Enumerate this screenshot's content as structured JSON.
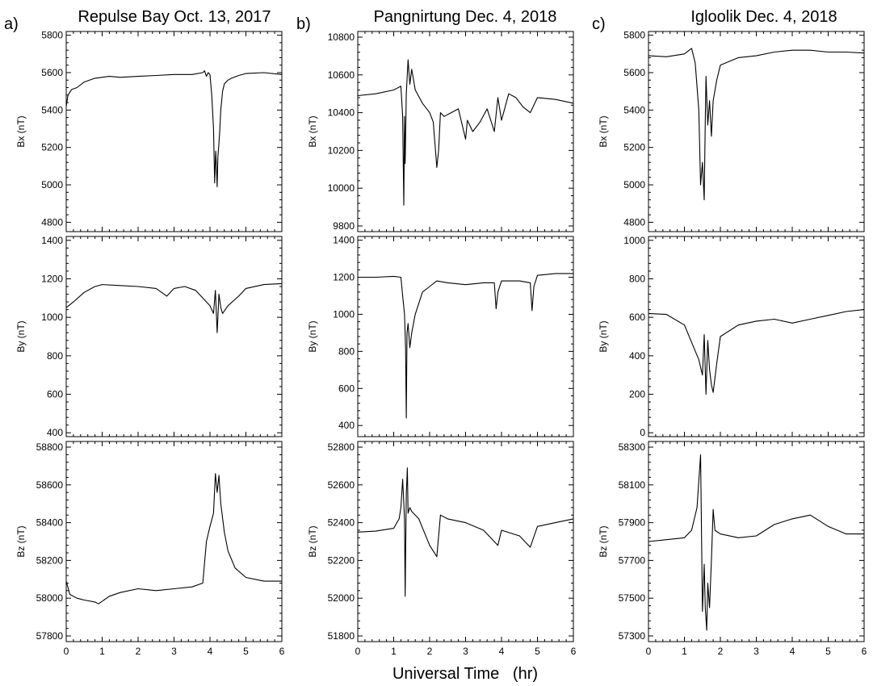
{
  "figure": {
    "xlabel": "Universal Time   (hr)",
    "columns": [
      {
        "letter": "a)",
        "title": "Repulse Bay   Oct. 13, 2017"
      },
      {
        "letter": "b)",
        "title": "Pangnirtung   Dec. 4, 2018"
      },
      {
        "letter": "c)",
        "title": "Igloolik   Dec. 4, 2018"
      }
    ]
  },
  "chart_data": [
    {
      "type": "line",
      "station": "Repulse Bay",
      "date": "Oct. 13, 2017",
      "ylabel": "Bx  (nT)",
      "xlim": [
        0,
        6
      ],
      "ylim": [
        4750,
        5820
      ],
      "xticks": [
        0,
        1,
        2,
        3,
        4,
        5,
        6
      ],
      "yticks": [
        4800,
        5000,
        5200,
        5400,
        5600,
        5800
      ],
      "series": [
        {
          "x": [
            0,
            0.05,
            0.15,
            0.3,
            0.5,
            0.8,
            1.0,
            1.2,
            1.5,
            2.0,
            2.5,
            3.0,
            3.5,
            3.8,
            3.85,
            3.9,
            3.95,
            4.0,
            4.05,
            4.1,
            4.13,
            4.16,
            4.18,
            4.2,
            4.22,
            4.24,
            4.27,
            4.3,
            4.35,
            4.4,
            4.5,
            4.6,
            4.8,
            5.0,
            5.5,
            6.0
          ],
          "y": [
            5420,
            5480,
            5510,
            5520,
            5550,
            5570,
            5575,
            5580,
            5575,
            5580,
            5585,
            5590,
            5590,
            5600,
            5610,
            5580,
            5600,
            5590,
            5480,
            5300,
            5010,
            5180,
            5100,
            4990,
            5150,
            5200,
            5280,
            5400,
            5500,
            5540,
            5560,
            5570,
            5585,
            5595,
            5600,
            5590
          ]
        }
      ]
    },
    {
      "type": "line",
      "station": "Repulse Bay",
      "date": "Oct. 13, 2017",
      "ylabel": "By  (nT)",
      "xlim": [
        0,
        6
      ],
      "ylim": [
        380,
        1420
      ],
      "xticks": [
        0,
        1,
        2,
        3,
        4,
        5,
        6
      ],
      "yticks": [
        400,
        600,
        800,
        1000,
        1200,
        1400
      ],
      "series": [
        {
          "x": [
            0,
            0.2,
            0.5,
            0.8,
            1.0,
            1.5,
            2.0,
            2.5,
            2.8,
            3.0,
            3.3,
            3.6,
            3.8,
            4.0,
            4.1,
            4.15,
            4.2,
            4.22,
            4.25,
            4.3,
            4.35,
            4.5,
            4.8,
            5.0,
            5.5,
            6.0
          ],
          "y": [
            1050,
            1080,
            1130,
            1160,
            1170,
            1165,
            1160,
            1150,
            1110,
            1150,
            1160,
            1140,
            1100,
            1060,
            1020,
            1140,
            920,
            1000,
            1120,
            1050,
            1020,
            1060,
            1110,
            1150,
            1170,
            1175
          ]
        }
      ]
    },
    {
      "type": "line",
      "station": "Repulse Bay",
      "date": "Oct. 13, 2017",
      "ylabel": "Bz  (nT)",
      "xlim": [
        0,
        6
      ],
      "ylim": [
        57770,
        58830
      ],
      "xticks": [
        0,
        1,
        2,
        3,
        4,
        5,
        6
      ],
      "yticks": [
        57800,
        58000,
        58200,
        58400,
        58600,
        58800
      ],
      "series": [
        {
          "x": [
            0,
            0.1,
            0.3,
            0.5,
            0.8,
            0.9,
            1.2,
            1.5,
            2.0,
            2.5,
            3.0,
            3.5,
            3.8,
            3.9,
            4.0,
            4.1,
            4.15,
            4.2,
            4.25,
            4.3,
            4.4,
            4.5,
            4.7,
            5.0,
            5.5,
            6.0
          ],
          "y": [
            58090,
            58020,
            58000,
            57990,
            57980,
            57970,
            58010,
            58030,
            58050,
            58040,
            58050,
            58060,
            58080,
            58300,
            58380,
            58450,
            58660,
            58560,
            58650,
            58500,
            58350,
            58250,
            58160,
            58110,
            58090,
            58090
          ]
        }
      ]
    },
    {
      "type": "line",
      "station": "Pangnirtung",
      "date": "Dec. 4, 2018",
      "ylabel": "Bx  (nT)",
      "xlim": [
        0,
        6
      ],
      "ylim": [
        9770,
        10830
      ],
      "xticks": [
        0,
        1,
        2,
        3,
        4,
        5,
        6
      ],
      "yticks": [
        9800,
        10000,
        10200,
        10400,
        10600,
        10800
      ],
      "series": [
        {
          "x": [
            0,
            0.5,
            1.0,
            1.2,
            1.25,
            1.28,
            1.3,
            1.32,
            1.35,
            1.4,
            1.45,
            1.5,
            1.6,
            1.8,
            2.0,
            2.1,
            2.2,
            2.25,
            2.3,
            2.4,
            2.6,
            2.8,
            3.0,
            3.05,
            3.2,
            3.4,
            3.6,
            3.8,
            3.9,
            4.0,
            4.2,
            4.4,
            4.6,
            4.8,
            5.0,
            5.5,
            6.0
          ],
          "y": [
            10490,
            10500,
            10520,
            10540,
            10380,
            9910,
            10380,
            10130,
            10500,
            10680,
            10550,
            10630,
            10520,
            10450,
            10400,
            10350,
            10110,
            10200,
            10400,
            10380,
            10400,
            10420,
            10260,
            10360,
            10300,
            10350,
            10420,
            10300,
            10480,
            10360,
            10500,
            10480,
            10430,
            10400,
            10480,
            10470,
            10450
          ]
        }
      ]
    },
    {
      "type": "line",
      "station": "Pangnirtung",
      "date": "Dec. 4, 2018",
      "ylabel": "By  (nT)",
      "xlim": [
        0,
        6
      ],
      "ylim": [
        340,
        1420
      ],
      "xticks": [
        0,
        1,
        2,
        3,
        4,
        5,
        6
      ],
      "yticks": [
        400,
        600,
        800,
        1000,
        1200,
        1400
      ],
      "series": [
        {
          "x": [
            0,
            0.5,
            1.0,
            1.2,
            1.25,
            1.3,
            1.33,
            1.35,
            1.37,
            1.4,
            1.45,
            1.5,
            1.6,
            1.8,
            2.0,
            2.2,
            2.5,
            3.0,
            3.5,
            3.8,
            3.85,
            3.9,
            4.0,
            4.5,
            4.8,
            4.85,
            4.9,
            5.0,
            5.5,
            6.0
          ],
          "y": [
            1200,
            1200,
            1205,
            1200,
            1100,
            1000,
            820,
            440,
            900,
            950,
            820,
            900,
            1000,
            1120,
            1150,
            1180,
            1170,
            1160,
            1170,
            1170,
            1030,
            1120,
            1180,
            1180,
            1170,
            1020,
            1150,
            1210,
            1220,
            1220
          ]
        }
      ]
    },
    {
      "type": "line",
      "station": "Pangnirtung",
      "date": "Dec. 4, 2018",
      "ylabel": "Bz  (nT)",
      "xlim": [
        0,
        6
      ],
      "ylim": [
        51770,
        52830
      ],
      "xticks": [
        0,
        1,
        2,
        3,
        4,
        5,
        6
      ],
      "yticks": [
        51800,
        52000,
        52200,
        52400,
        52600,
        52800
      ],
      "series": [
        {
          "x": [
            0,
            0.5,
            1.0,
            1.15,
            1.2,
            1.25,
            1.3,
            1.32,
            1.35,
            1.38,
            1.4,
            1.45,
            1.5,
            1.7,
            2.0,
            2.2,
            2.3,
            2.5,
            3.0,
            3.5,
            3.9,
            4.0,
            4.5,
            4.8,
            5.0,
            5.5,
            6.0
          ],
          "y": [
            52350,
            52355,
            52370,
            52420,
            52480,
            52630,
            52420,
            52010,
            52550,
            52690,
            52450,
            52480,
            52460,
            52420,
            52280,
            52220,
            52440,
            52420,
            52400,
            52360,
            52280,
            52360,
            52330,
            52270,
            52380,
            52400,
            52420
          ]
        }
      ]
    },
    {
      "type": "line",
      "station": "Igloolik",
      "date": "Dec. 4, 2018",
      "ylabel": "Bx  (nT)",
      "xlim": [
        0,
        6
      ],
      "ylim": [
        4750,
        5820
      ],
      "xticks": [
        0,
        1,
        2,
        3,
        4,
        5,
        6
      ],
      "yticks": [
        4800,
        5000,
        5200,
        5400,
        5600,
        5800
      ],
      "series": [
        {
          "x": [
            0,
            0.5,
            1.0,
            1.2,
            1.3,
            1.4,
            1.45,
            1.5,
            1.55,
            1.58,
            1.6,
            1.65,
            1.7,
            1.75,
            1.8,
            1.9,
            2.0,
            2.5,
            3.0,
            3.5,
            4.0,
            4.5,
            5.0,
            5.5,
            6.0
          ],
          "y": [
            5690,
            5685,
            5700,
            5730,
            5650,
            5400,
            5000,
            5120,
            4920,
            5340,
            5580,
            5320,
            5450,
            5260,
            5450,
            5560,
            5640,
            5680,
            5690,
            5710,
            5720,
            5720,
            5710,
            5710,
            5705
          ]
        }
      ]
    },
    {
      "type": "line",
      "station": "Igloolik",
      "date": "Dec. 4, 2018",
      "ylabel": "By  (nT)",
      "xlim": [
        0,
        6
      ],
      "ylim": [
        -20,
        1020
      ],
      "xticks": [
        0,
        1,
        2,
        3,
        4,
        5,
        6
      ],
      "yticks": [
        0,
        200,
        400,
        600,
        800,
        1000
      ],
      "series": [
        {
          "x": [
            0,
            0.5,
            1.0,
            1.2,
            1.4,
            1.5,
            1.55,
            1.6,
            1.65,
            1.7,
            1.75,
            1.8,
            1.9,
            2.0,
            2.5,
            3.0,
            3.5,
            4.0,
            4.5,
            5.0,
            5.5,
            6.0
          ],
          "y": [
            620,
            615,
            560,
            470,
            380,
            300,
            510,
            200,
            480,
            330,
            250,
            210,
            360,
            500,
            560,
            580,
            590,
            570,
            590,
            610,
            630,
            640
          ]
        }
      ]
    },
    {
      "type": "line",
      "station": "Igloolik",
      "date": "Dec. 4, 2018",
      "ylabel": "Bz  (nT)",
      "xlim": [
        0,
        6
      ],
      "ylim": [
        57270,
        58330
      ],
      "xticks": [
        0,
        1,
        2,
        3,
        4,
        5,
        6
      ],
      "yticks": [
        57300,
        57500,
        57700,
        57900,
        58100,
        58300
      ],
      "series": [
        {
          "x": [
            0,
            0.5,
            1.0,
            1.2,
            1.35,
            1.45,
            1.5,
            1.55,
            1.58,
            1.62,
            1.65,
            1.7,
            1.75,
            1.8,
            1.85,
            2.0,
            2.5,
            3.0,
            3.5,
            4.0,
            4.5,
            5.0,
            5.5,
            6.0
          ],
          "y": [
            57800,
            57810,
            57820,
            57860,
            57980,
            58260,
            57430,
            57680,
            57450,
            57330,
            57580,
            57450,
            57700,
            57970,
            57860,
            57840,
            57820,
            57830,
            57890,
            57920,
            57940,
            57880,
            57840,
            57840
          ]
        }
      ]
    }
  ]
}
